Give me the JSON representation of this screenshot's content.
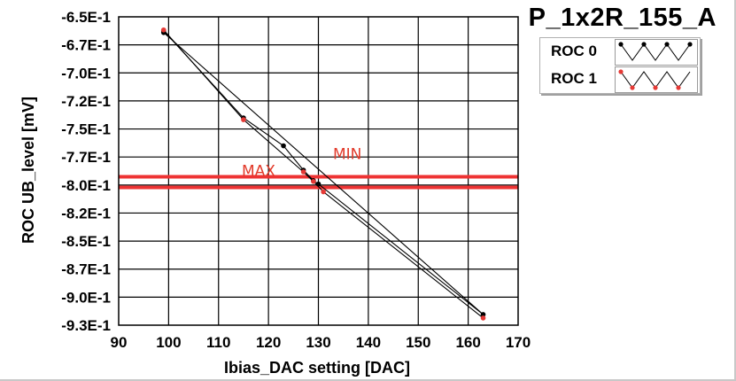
{
  "chart_data": {
    "type": "line",
    "title": "P_1x2R_155_A",
    "xlabel": "Ibias_DAC setting [DAC]",
    "ylabel": "ROC UB_level [mV]",
    "xlim": [
      90,
      170
    ],
    "ylim": [
      -0.93,
      -0.65
    ],
    "x_ticks": [
      "90",
      "100",
      "110",
      "120",
      "130",
      "140",
      "150",
      "160",
      "170"
    ],
    "y_ticks": [
      "-6.5E-1",
      "-6.7E-1",
      "-7.0E-1",
      "-7.2E-1",
      "-7.5E-1",
      "-7.7E-1",
      "-8.0E-1",
      "-8.2E-1",
      "-8.5E-1",
      "-8.7E-1",
      "-9.0E-1",
      "-9.3E-1"
    ],
    "grid": true,
    "legend_position": "top-right",
    "series": [
      {
        "name": "ROC 0",
        "color": "#000000",
        "points": [
          [
            99,
            -0.6627
          ],
          [
            115,
            -0.7418
          ],
          [
            123,
            -0.7671
          ],
          [
            127,
            -0.7892
          ],
          [
            129,
            -0.7987
          ],
          [
            130,
            -0.8018
          ],
          [
            163,
            -0.9203
          ],
          [
            99,
            -0.6643
          ]
        ]
      },
      {
        "name": "ROC 1",
        "color": "#e53935",
        "points": [
          [
            99,
            -0.6619
          ],
          [
            115,
            -0.7434
          ],
          [
            127,
            -0.7908
          ],
          [
            129,
            -0.7995
          ],
          [
            131,
            -0.8089
          ],
          [
            163,
            -0.9235
          ]
        ]
      }
    ],
    "reference_lines": [
      {
        "label": "MAX",
        "y": -0.7952,
        "color": "#ee3333"
      },
      {
        "label": "MIN",
        "y": -0.8049,
        "color": "#ee3333"
      }
    ]
  }
}
